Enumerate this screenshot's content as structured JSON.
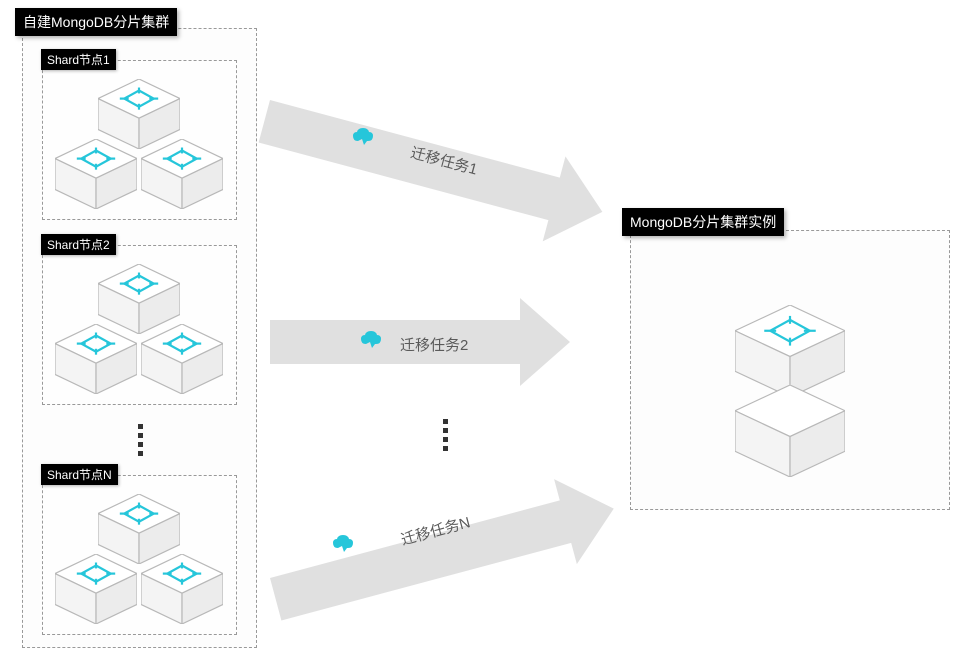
{
  "diagram": {
    "type": "flowchart",
    "background_color": "#ffffff",
    "left_group": {
      "title": "自建MongoDB分片集群",
      "title_bg": "#000000",
      "title_color": "#ffffff",
      "panel_border_color": "#999999",
      "panel_border_style": "dashed",
      "shards": [
        {
          "label": "Shard节点1"
        },
        {
          "label": "Shard节点2"
        },
        {
          "label": "Shard节点N"
        }
      ],
      "shard_label_bg": "#000000",
      "shard_label_color": "#ffffff",
      "cube_face_color": "#ffffff",
      "cube_edge_color": "#b8b8b8",
      "cube_glyph_color": "#26c6da"
    },
    "arrows": [
      {
        "label": "迁移任务1"
      },
      {
        "label": "迁移任务2"
      },
      {
        "label": "迁移任务N"
      }
    ],
    "arrow_fill": "#e0e0e0",
    "arrow_label_color": "#5a5a5a",
    "cloud_icon_color": "#26c6da",
    "right_group": {
      "title": "MongoDB分片集群实例",
      "title_bg": "#000000",
      "title_color": "#ffffff",
      "panel_border_color": "#999999",
      "panel_border_style": "dashed",
      "cube_face_color": "#ffffff",
      "cube_edge_color": "#b8b8b8",
      "cube_glyph_color": "#26c6da"
    },
    "ellipsis_color": "#333333"
  }
}
